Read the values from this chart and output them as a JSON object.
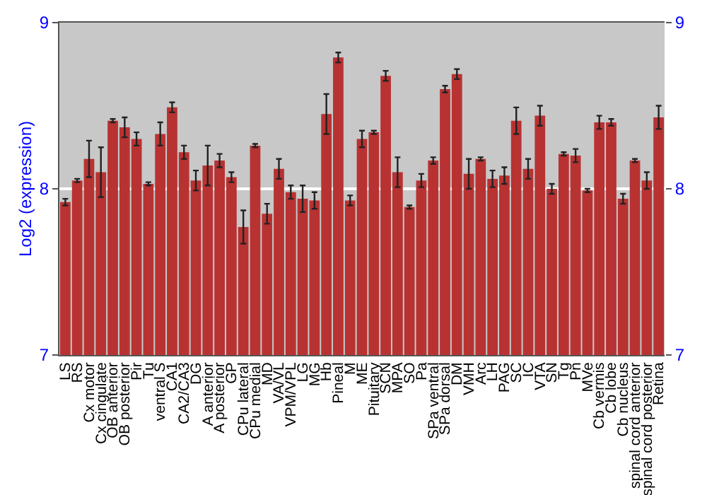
{
  "chart_data": {
    "type": "bar",
    "ylabel": "Log2 (expression)",
    "categories": [
      "LS",
      "RS",
      "Cx motor",
      "Cx cingulate",
      "OB anterior",
      "OB posterior",
      "Pir",
      "Tu",
      "ventral S",
      "CA1",
      "CA2/CA3",
      "DG",
      "A anterior",
      "A posterior",
      "GP",
      "CPu lateral",
      "CPu medial",
      "MD",
      "VA/VL",
      "VPM/VPL",
      "LG",
      "MG",
      "Hb",
      "Pineal",
      "M",
      "ME",
      "Pituitary",
      "SCN",
      "MPA",
      "SO",
      "Pa",
      "SPa ventral",
      "SPa dorsal",
      "DM",
      "VMH",
      "Arc",
      "LH",
      "PAG",
      "SC",
      "IC",
      "VTA",
      "SN",
      "Tg",
      "Pn",
      "MVe",
      "Cb vermis",
      "Cb lobe",
      "Cb nucleus",
      "spinal cord anterior",
      "spinal cord posterior",
      "Retina"
    ],
    "series": [
      {
        "color": "#b83232",
        "values": [
          7.92,
          8.05,
          8.18,
          8.1,
          8.41,
          8.37,
          8.3,
          8.03,
          8.33,
          8.49,
          8.22,
          8.05,
          8.14,
          8.17,
          8.07,
          7.77,
          8.26,
          7.85,
          8.12,
          7.98,
          7.94,
          7.93,
          8.45,
          8.79,
          7.93,
          8.3,
          8.34,
          8.68,
          8.1,
          7.89,
          8.05,
          8.17,
          8.6,
          8.69,
          8.09,
          8.18,
          8.06,
          8.08,
          8.41,
          8.12,
          8.44,
          8.0,
          8.21,
          8.2,
          7.99,
          8.4,
          8.4,
          7.94,
          8.17,
          8.05,
          8.43
        ],
        "errors": [
          0.02,
          0.01,
          0.11,
          0.15,
          0.01,
          0.06,
          0.04,
          0.01,
          0.07,
          0.03,
          0.04,
          0.06,
          0.12,
          0.04,
          0.03,
          0.1,
          0.01,
          0.06,
          0.06,
          0.04,
          0.08,
          0.05,
          0.12,
          0.03,
          0.03,
          0.05,
          0.01,
          0.03,
          0.09,
          0.01,
          0.04,
          0.02,
          0.02,
          0.03,
          0.09,
          0.01,
          0.05,
          0.05,
          0.08,
          0.06,
          0.06,
          0.03,
          0.01,
          0.04,
          0.01,
          0.04,
          0.02,
          0.03,
          0.01,
          0.05,
          0.07
        ]
      }
    ],
    "ylim": [
      7,
      9
    ],
    "yticks": [
      7,
      8,
      9
    ],
    "y2lim": [
      7,
      9
    ],
    "y2ticks": [
      7,
      8,
      9
    ],
    "grid": "y"
  }
}
